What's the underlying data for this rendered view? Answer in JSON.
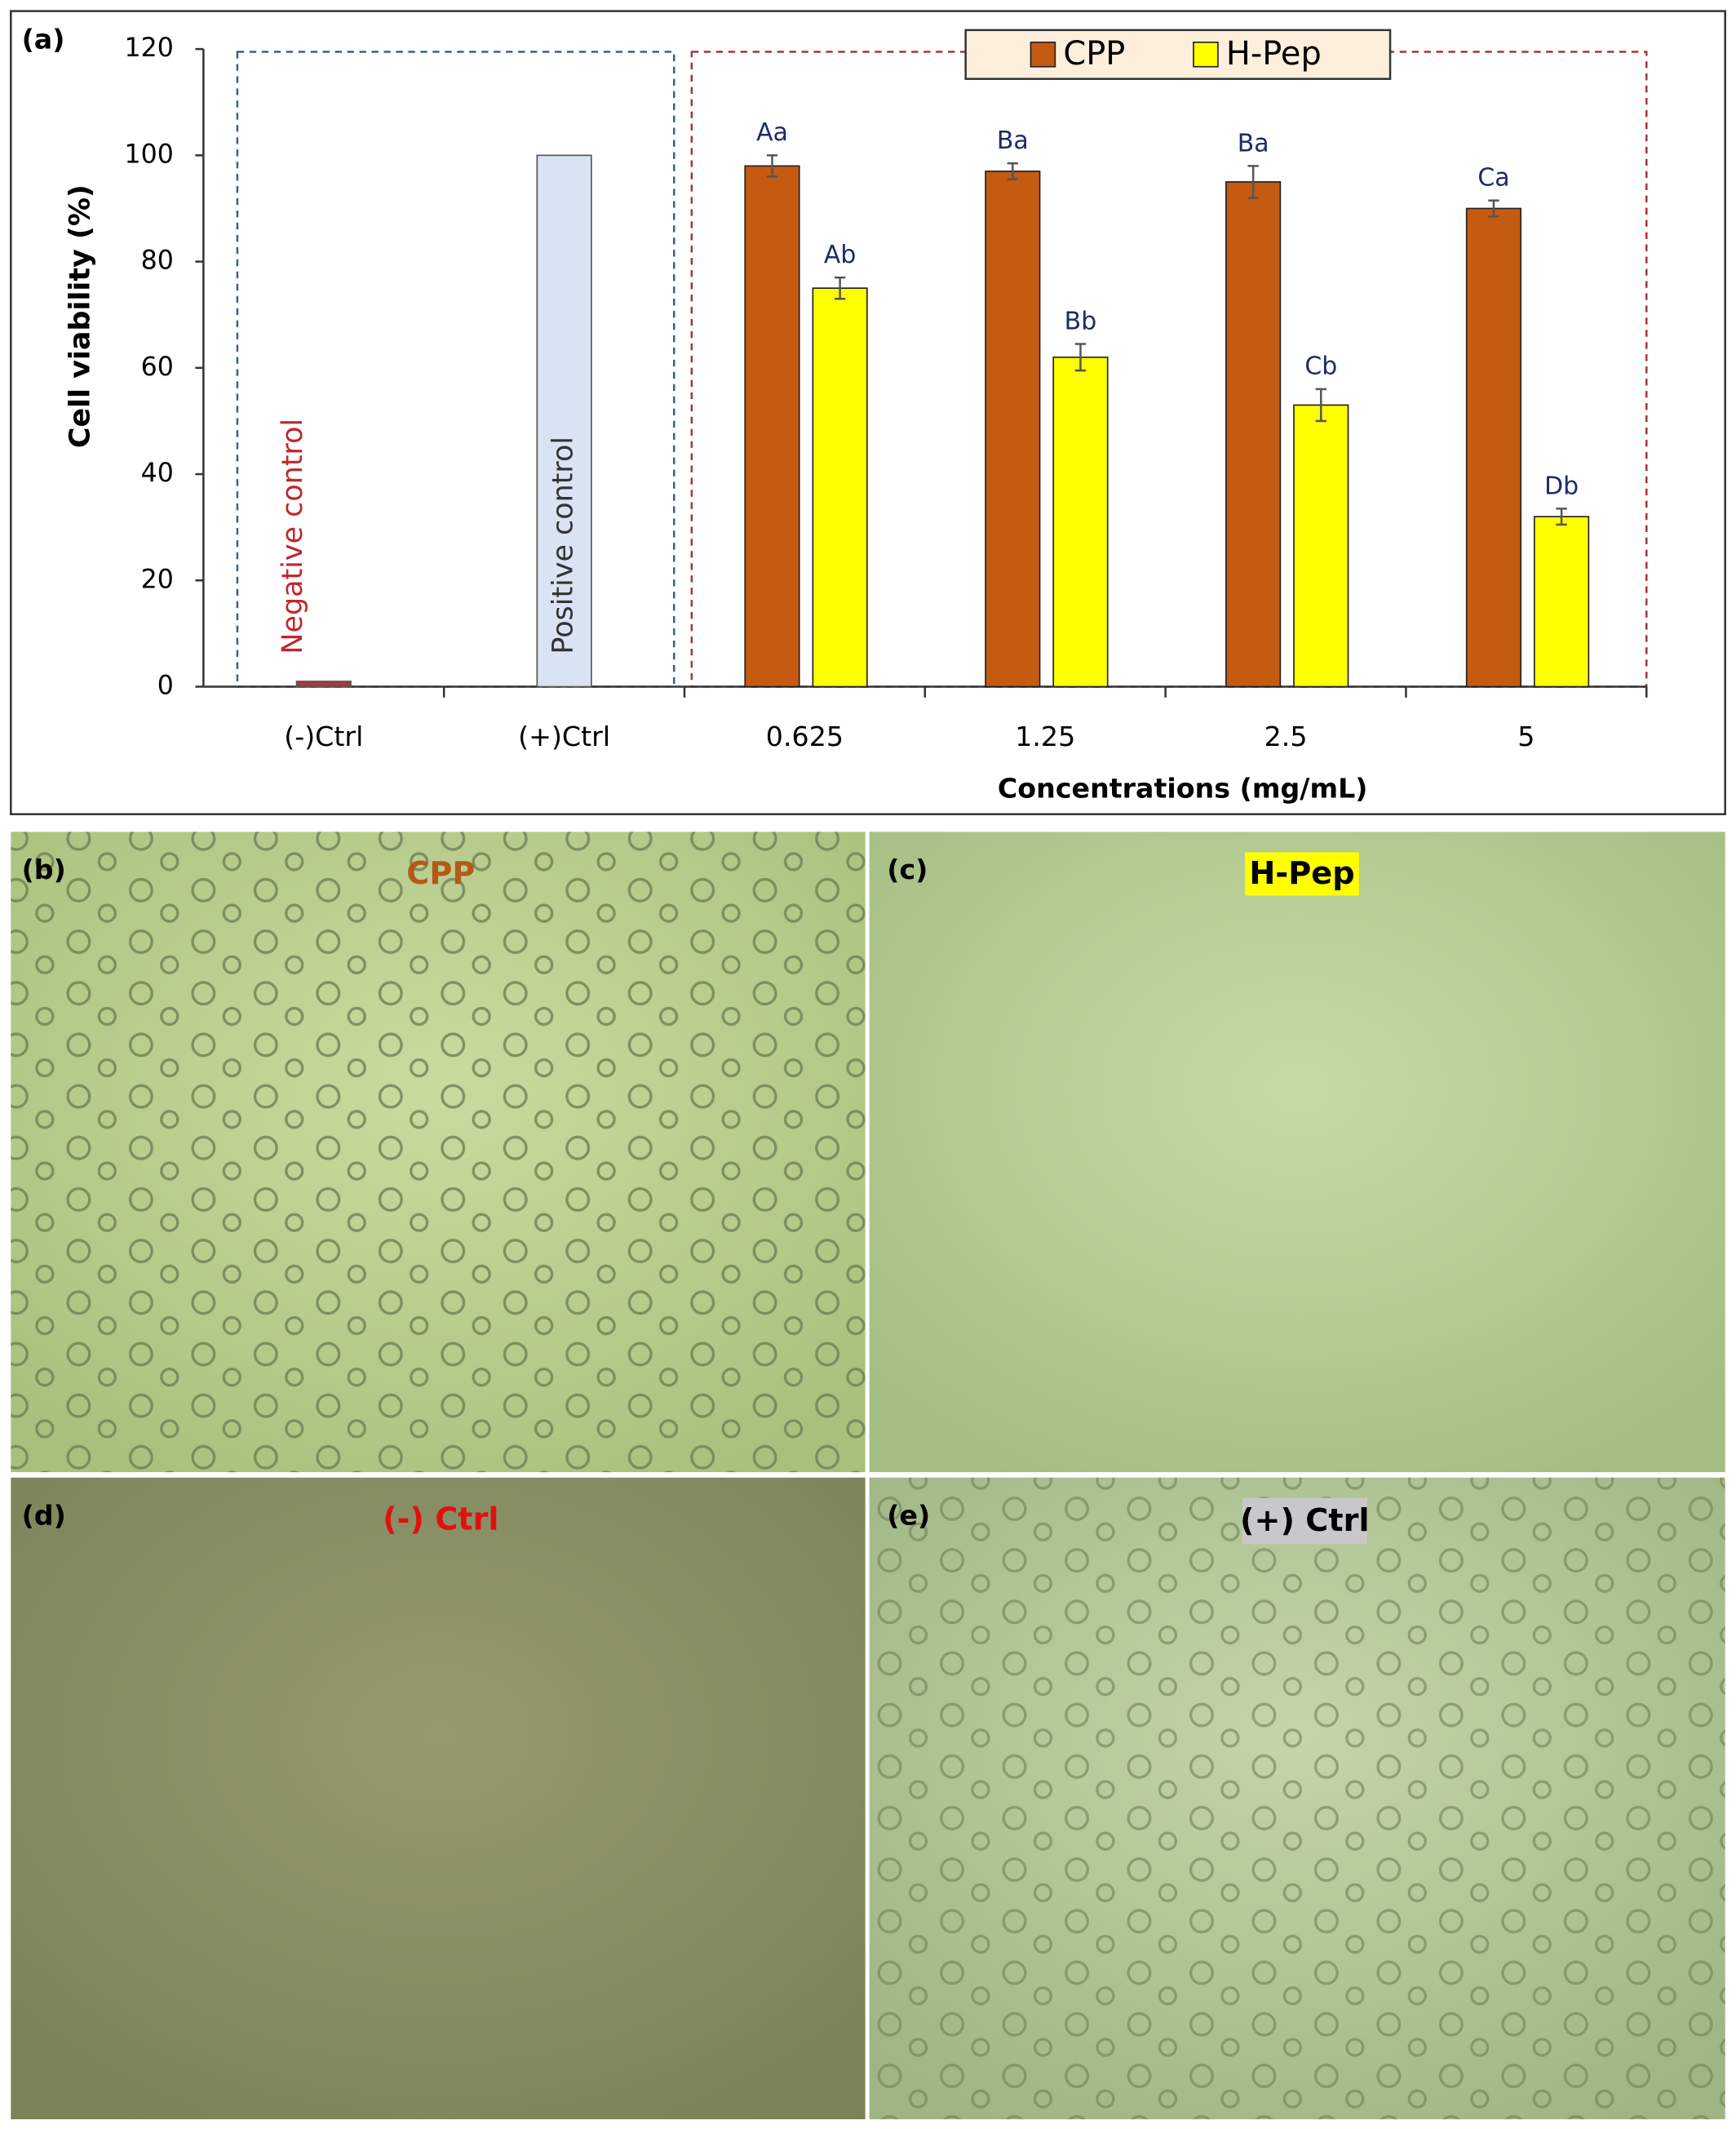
{
  "figure_label": "(a)",
  "chart_data": {
    "type": "bar",
    "y_label": "Cell viability (%)",
    "x_label": "Concentrations (mg/mL)",
    "categories": [
      "(-)Ctrl",
      "(+)Ctrl",
      "0.625",
      "1.25",
      "2.5",
      "5"
    ],
    "ylim": [
      0,
      120
    ],
    "yticks": [
      0,
      20,
      40,
      60,
      80,
      100,
      120
    ],
    "controls": [
      {
        "label": "Negative control",
        "value": 1,
        "color": "#a9373a",
        "label_color": "#c0272d"
      },
      {
        "label": "Positive control",
        "value": 100,
        "color": "#dae3f3",
        "label_color": "#333333"
      }
    ],
    "series": [
      {
        "name": "CPP",
        "color": "#c55a11",
        "values": [
          null,
          null,
          98,
          97,
          95,
          90
        ],
        "errors": [
          null,
          null,
          2,
          1.5,
          3,
          1.5
        ],
        "letters": [
          null,
          null,
          "Aa",
          "Ba",
          "Ba",
          "Ca"
        ]
      },
      {
        "name": "H-Pep",
        "color": "#ffff00",
        "values": [
          null,
          null,
          75,
          62,
          53,
          32
        ],
        "errors": [
          null,
          null,
          2,
          2.5,
          3,
          1.5
        ],
        "letters": [
          null,
          null,
          "Ab",
          "Bb",
          "Cb",
          "Db"
        ]
      }
    ],
    "grid": false
  },
  "panels": [
    {
      "label": "(b)",
      "caption": "CPP"
    },
    {
      "label": "(c)",
      "caption": "H-Pep"
    },
    {
      "label": "(d)",
      "caption": "(-) Ctrl"
    },
    {
      "label": "(e)",
      "caption": "(+) Ctrl"
    }
  ]
}
